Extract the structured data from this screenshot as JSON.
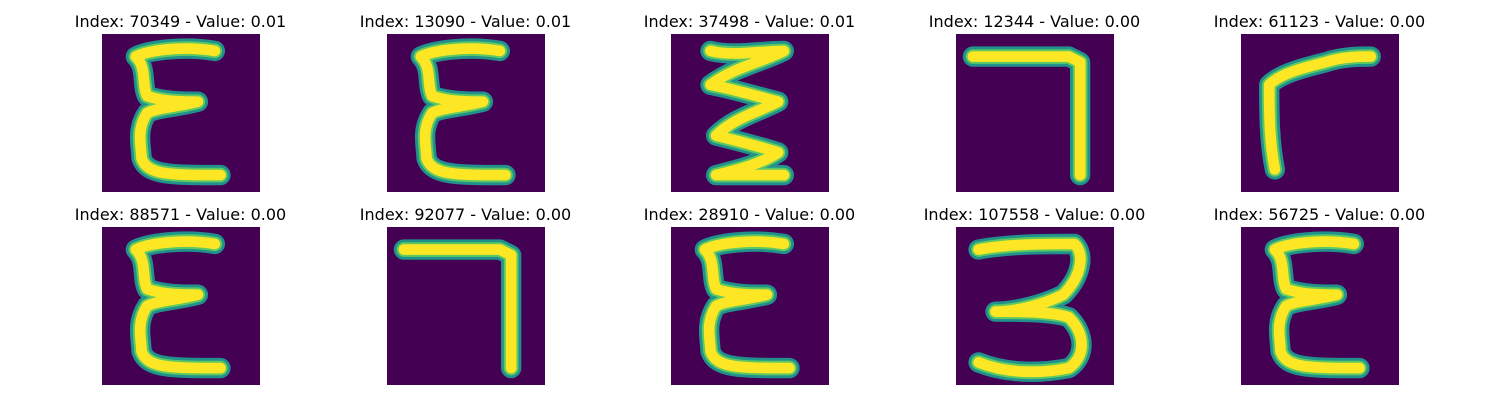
{
  "colors": {
    "background": "#440154",
    "stroke_edge": "#21918c",
    "stroke_core": "#fde725",
    "stroke_mid": "#5ec962"
  },
  "rows": [
    [
      {
        "title": "Index: 70349 - Value: 0.01",
        "glyph": "E"
      },
      {
        "title": "Index: 13090 - Value: 0.01",
        "glyph": "E"
      },
      {
        "title": "Index: 37498 - Value: 0.01",
        "glyph": "zigzag"
      },
      {
        "title": "Index: 12344 - Value: 0.00",
        "glyph": "7"
      },
      {
        "title": "Index: 61123 - Value: 0.00",
        "glyph": "r"
      }
    ],
    [
      {
        "title": "Index: 88571 - Value: 0.00",
        "glyph": "E"
      },
      {
        "title": "Index: 92077 - Value: 0.00",
        "glyph": "7"
      },
      {
        "title": "Index: 28910 - Value: 0.00",
        "glyph": "E"
      },
      {
        "title": "Index: 107558 - Value: 0.00",
        "glyph": "3"
      },
      {
        "title": "Index: 56725 - Value: 0.00",
        "glyph": "E"
      }
    ]
  ]
}
